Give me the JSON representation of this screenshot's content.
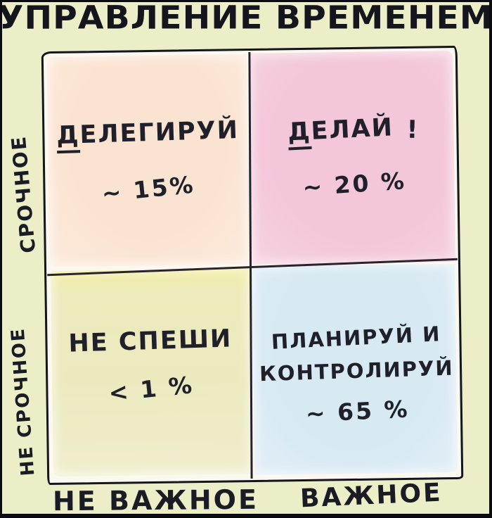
{
  "title": "УПРАВЛЕНИЕ ВРЕМЕНЕМ",
  "matrix": {
    "quadrants": {
      "delegate": {
        "label_head": "Д",
        "label_tail": "ЕЛЕГИРУЙ",
        "value": "~ 15%"
      },
      "do": {
        "label_head": "Д",
        "label_tail": "ЕЛАЙ",
        "suffix": "!",
        "value": "~ 20 %"
      },
      "dont_rush": {
        "label": "НЕ СПЕШИ",
        "value": "< 1 %"
      },
      "plan": {
        "label_line1": "ПЛАНИРУЙ И",
        "label_line2": "КОНТРОЛИРУЙ",
        "value": "~ 65 %"
      }
    },
    "axes": {
      "y_top": "СРОЧНОЕ",
      "y_bottom": "НЕ СРОЧНОЕ",
      "x_left": "НЕ ВАЖНОЕ",
      "x_right": "ВАЖНОЕ"
    }
  },
  "colors": {
    "page_background": "#ebeec7",
    "frame": "#0b0b10",
    "ink": "#1e1e28",
    "quadrant_delegate": "#fbe3d1",
    "quadrant_do": "#f3c6d9",
    "quadrant_dont_rush": "#edebbc",
    "quadrant_plan": "#d7e9f3"
  }
}
